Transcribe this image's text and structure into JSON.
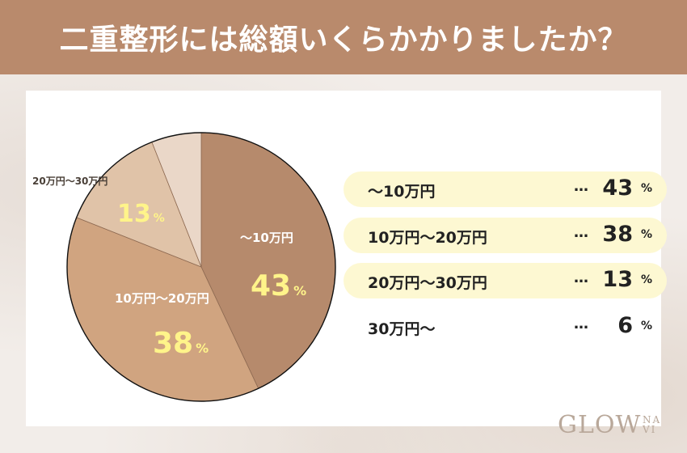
{
  "header": {
    "title": "二重整形には総額いくらかかりましたか？"
  },
  "chart_data": {
    "type": "pie",
    "title": "二重整形には総額いくらかかりましたか？",
    "categories": [
      "〜10万円",
      "10万円〜20万円",
      "20万円〜30万円",
      "30万円〜"
    ],
    "values": [
      43,
      38,
      13,
      6
    ],
    "unit": "%",
    "colors": [
      "#b68a6c",
      "#d0a480",
      "#e0c3a8",
      "#ead7c8"
    ],
    "pie_labels": [
      {
        "name": "〜10万円",
        "value": "43",
        "unit": "%"
      },
      {
        "name": "10万円〜20万円",
        "value": "38",
        "unit": "%"
      },
      {
        "name": "20万円〜30万円",
        "value": "13",
        "unit": "%"
      }
    ],
    "legend": [
      {
        "label": "〜10万円",
        "dots": "…",
        "value": "43",
        "unit": "%",
        "highlight": true
      },
      {
        "label": "10万円〜20万円",
        "dots": "…",
        "value": "38",
        "unit": "%",
        "highlight": true
      },
      {
        "label": "20万円〜30万円",
        "dots": "…",
        "value": "13",
        "unit": "%",
        "highlight": true
      },
      {
        "label": "30万円〜",
        "dots": "…",
        "value": "6",
        "unit": "%",
        "highlight": false
      }
    ]
  },
  "brand": {
    "name": "GLOW",
    "sub1": "NA",
    "sub2": "VI"
  }
}
